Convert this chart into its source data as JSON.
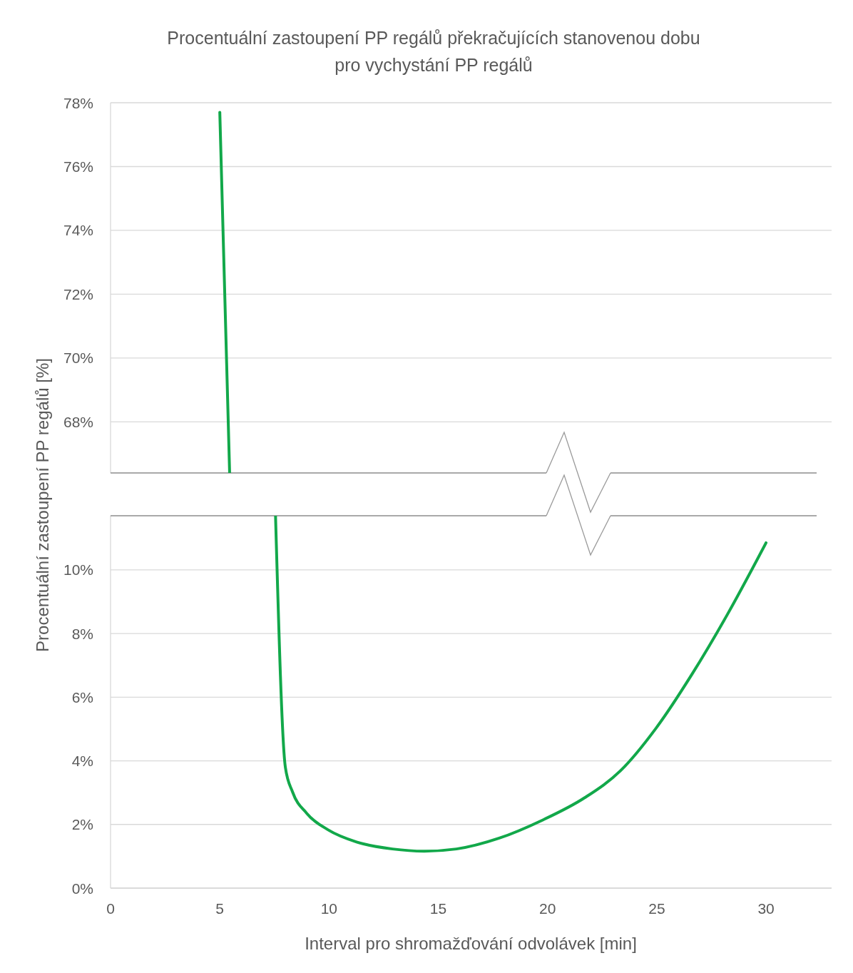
{
  "chart_data": [
    {
      "type": "line",
      "title": "Procentuální zastoupení PP regálů překračujících stanovenou dobu pro vychystání PP regálů",
      "ylabel": "Procentuální zastoupení PP regálů [%]",
      "xlim": [
        0,
        33
      ],
      "ylim": [
        66.4,
        78
      ],
      "yticks": [
        {
          "value": 68,
          "label": "68%"
        },
        {
          "value": 70,
          "label": "70%"
        },
        {
          "value": 72,
          "label": "72%"
        },
        {
          "value": 74,
          "label": "74%"
        },
        {
          "value": 76,
          "label": "76%"
        },
        {
          "value": 78,
          "label": "78%"
        }
      ],
      "grid": "y",
      "tick_labels": "y",
      "series": [
        {
          "color": "#12a84a",
          "x": [
            5,
            5.45
          ],
          "values": [
            77.7,
            66.4
          ]
        }
      ]
    },
    {
      "type": "line",
      "xlabel": "Interval pro shromažďování odvolávek [min]",
      "xlim": [
        0,
        33
      ],
      "xticks": [
        0,
        5,
        10,
        15,
        20,
        25,
        30
      ],
      "ylim": [
        0,
        11.7
      ],
      "yticks": [
        {
          "value": 0,
          "label": "0%"
        },
        {
          "value": 2,
          "label": "2%"
        },
        {
          "value": 4,
          "label": "4%"
        },
        {
          "value": 6,
          "label": "6%"
        },
        {
          "value": 8,
          "label": "8%"
        },
        {
          "value": 10,
          "label": "10%"
        }
      ],
      "grid": "y",
      "series": [
        {
          "color": "#12a84a",
          "x": [
            7.55,
            8.0,
            8.33,
            8.98,
            9.96,
            11.26,
            12.9,
            14.36,
            15.83,
            17.79,
            19.75,
            21.7,
            23.34,
            24.97,
            26.6,
            28.24,
            30.0
          ],
          "values": [
            11.7,
            3.8,
            3.02,
            2.35,
            1.83,
            1.45,
            1.23,
            1.16,
            1.23,
            1.57,
            2.13,
            2.84,
            3.69,
            5.03,
            6.71,
            8.61,
            10.85
          ]
        }
      ]
    }
  ]
}
